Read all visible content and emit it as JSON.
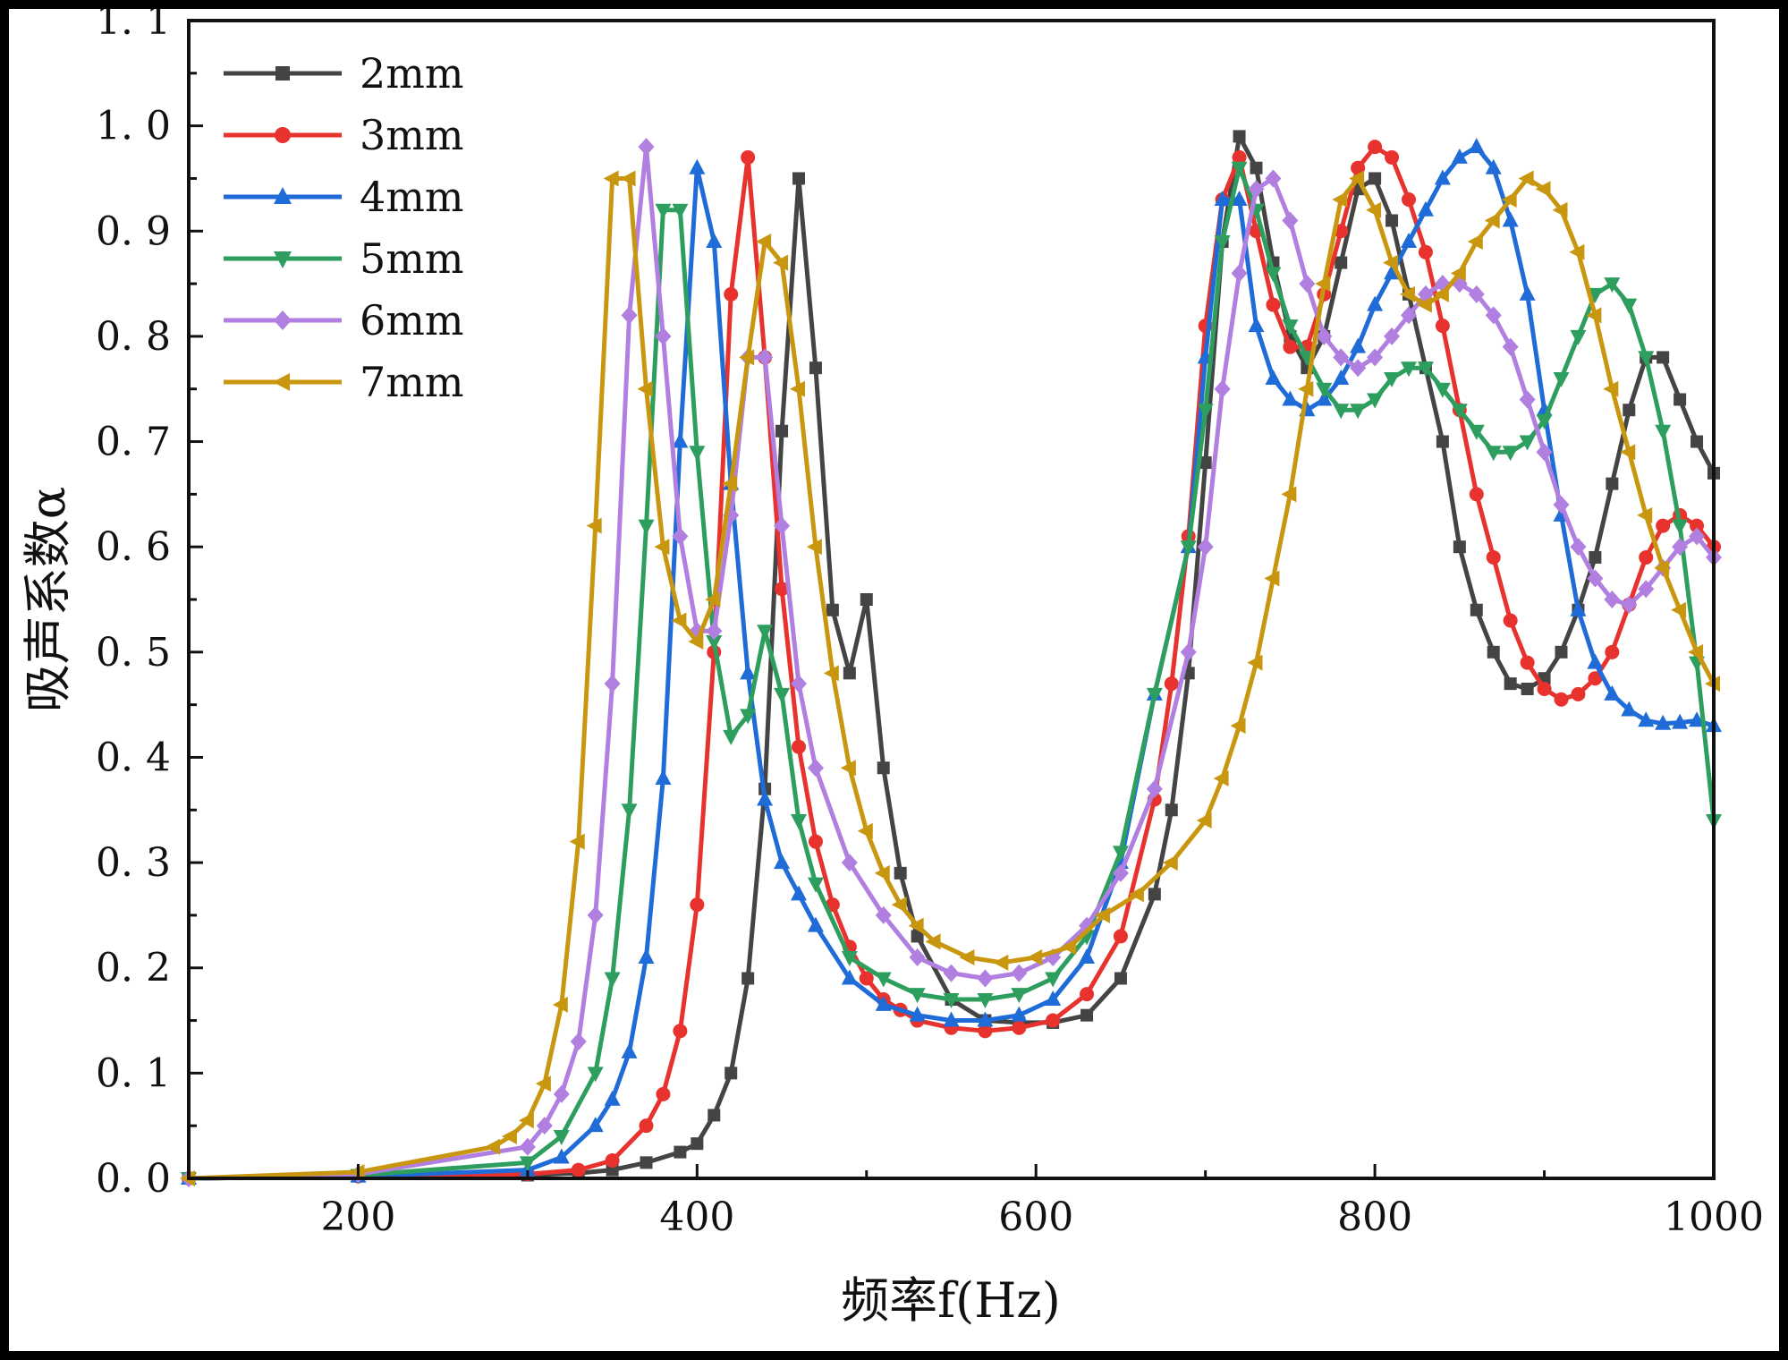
{
  "chart_data": {
    "type": "line",
    "title": "",
    "xlabel": "频率f(Hz)",
    "ylabel": "吸声系数α",
    "xlim": [
      100,
      1000
    ],
    "ylim": [
      0,
      1.1
    ],
    "xticks": [
      200,
      400,
      600,
      800,
      1000
    ],
    "xtick_labels": [
      "200",
      "400",
      "600",
      "800",
      "1000"
    ],
    "yticks": [
      0,
      0.1,
      0.2,
      0.3,
      0.4,
      0.5,
      0.6,
      0.7,
      0.8,
      0.9,
      1.0,
      1.1
    ],
    "ytick_labels": [
      "0. 0",
      "0. 1",
      "0. 2",
      "0. 3",
      "0. 4",
      "0. 5",
      "0. 6",
      "0. 7",
      "0. 8",
      "0. 9",
      "1. 0",
      "1. 1"
    ],
    "legend_position": "top-left",
    "grid": false,
    "series": [
      {
        "name": "2mm",
        "color": "#444444",
        "marker": "square",
        "x": [
          100,
          200,
          300,
          330,
          350,
          370,
          390,
          400,
          410,
          420,
          430,
          440,
          450,
          460,
          470,
          480,
          490,
          500,
          510,
          520,
          530,
          550,
          570,
          590,
          610,
          630,
          650,
          670,
          680,
          690,
          700,
          710,
          720,
          730,
          740,
          750,
          760,
          770,
          780,
          790,
          800,
          810,
          820,
          830,
          840,
          850,
          860,
          870,
          880,
          890,
          900,
          910,
          920,
          930,
          940,
          950,
          960,
          970,
          980,
          990,
          1000
        ],
        "y": [
          0,
          0.002,
          0.003,
          0.005,
          0.008,
          0.015,
          0.025,
          0.033,
          0.06,
          0.1,
          0.19,
          0.37,
          0.71,
          0.95,
          0.77,
          0.54,
          0.48,
          0.55,
          0.39,
          0.29,
          0.23,
          0.17,
          0.15,
          0.148,
          0.148,
          0.155,
          0.19,
          0.27,
          0.35,
          0.48,
          0.68,
          0.89,
          0.99,
          0.96,
          0.87,
          0.8,
          0.77,
          0.8,
          0.87,
          0.94,
          0.95,
          0.91,
          0.84,
          0.77,
          0.7,
          0.6,
          0.54,
          0.5,
          0.47,
          0.465,
          0.475,
          0.5,
          0.54,
          0.59,
          0.66,
          0.73,
          0.78,
          0.78,
          0.74,
          0.7,
          0.67
        ]
      },
      {
        "name": "3mm",
        "color": "#e8322e",
        "marker": "circle",
        "x": [
          100,
          200,
          300,
          330,
          350,
          370,
          380,
          390,
          400,
          410,
          420,
          430,
          440,
          450,
          460,
          470,
          480,
          490,
          500,
          510,
          520,
          530,
          550,
          570,
          590,
          610,
          630,
          650,
          670,
          680,
          690,
          700,
          710,
          720,
          730,
          740,
          750,
          760,
          770,
          780,
          790,
          800,
          810,
          820,
          830,
          840,
          850,
          860,
          870,
          880,
          890,
          900,
          910,
          920,
          930,
          940,
          950,
          960,
          970,
          980,
          990,
          1000
        ],
        "y": [
          0,
          0.002,
          0.004,
          0.008,
          0.017,
          0.05,
          0.08,
          0.14,
          0.26,
          0.5,
          0.84,
          0.97,
          0.78,
          0.56,
          0.41,
          0.32,
          0.26,
          0.22,
          0.19,
          0.17,
          0.16,
          0.15,
          0.143,
          0.14,
          0.143,
          0.15,
          0.175,
          0.23,
          0.36,
          0.47,
          0.61,
          0.81,
          0.93,
          0.97,
          0.9,
          0.83,
          0.79,
          0.79,
          0.84,
          0.9,
          0.96,
          0.98,
          0.97,
          0.93,
          0.88,
          0.81,
          0.73,
          0.65,
          0.59,
          0.53,
          0.49,
          0.465,
          0.455,
          0.46,
          0.475,
          0.5,
          0.545,
          0.59,
          0.62,
          0.63,
          0.62,
          0.6
        ]
      },
      {
        "name": "4mm",
        "color": "#1f6bd8",
        "marker": "triangle-up",
        "x": [
          100,
          200,
          300,
          320,
          340,
          350,
          360,
          370,
          380,
          390,
          400,
          410,
          420,
          430,
          440,
          450,
          460,
          470,
          490,
          510,
          530,
          550,
          570,
          590,
          610,
          630,
          650,
          670,
          690,
          700,
          710,
          720,
          730,
          740,
          750,
          760,
          770,
          780,
          790,
          800,
          810,
          820,
          830,
          840,
          850,
          860,
          870,
          880,
          890,
          900,
          910,
          920,
          930,
          940,
          950,
          960,
          970,
          980,
          990,
          1000
        ],
        "y": [
          0,
          0.002,
          0.008,
          0.02,
          0.05,
          0.075,
          0.12,
          0.21,
          0.38,
          0.7,
          0.96,
          0.89,
          0.66,
          0.48,
          0.36,
          0.3,
          0.27,
          0.24,
          0.19,
          0.165,
          0.155,
          0.15,
          0.15,
          0.155,
          0.17,
          0.21,
          0.3,
          0.46,
          0.6,
          0.78,
          0.93,
          0.93,
          0.81,
          0.76,
          0.74,
          0.73,
          0.74,
          0.76,
          0.79,
          0.83,
          0.86,
          0.89,
          0.92,
          0.95,
          0.97,
          0.98,
          0.96,
          0.91,
          0.84,
          0.73,
          0.63,
          0.54,
          0.49,
          0.46,
          0.445,
          0.435,
          0.432,
          0.433,
          0.435,
          0.43
        ]
      },
      {
        "name": "5mm",
        "color": "#2e9e5e",
        "marker": "triangle-down",
        "x": [
          100,
          200,
          300,
          320,
          340,
          350,
          360,
          370,
          380,
          390,
          400,
          410,
          420,
          430,
          440,
          450,
          460,
          470,
          490,
          510,
          530,
          550,
          570,
          590,
          610,
          630,
          650,
          670,
          690,
          700,
          710,
          720,
          730,
          740,
          750,
          760,
          770,
          780,
          790,
          800,
          810,
          820,
          830,
          840,
          850,
          860,
          870,
          880,
          890,
          900,
          910,
          920,
          930,
          940,
          950,
          960,
          970,
          980,
          990,
          1000
        ],
        "y": [
          0,
          0.003,
          0.015,
          0.04,
          0.1,
          0.19,
          0.35,
          0.62,
          0.92,
          0.92,
          0.69,
          0.51,
          0.42,
          0.44,
          0.52,
          0.46,
          0.34,
          0.28,
          0.21,
          0.19,
          0.175,
          0.17,
          0.17,
          0.175,
          0.19,
          0.23,
          0.31,
          0.46,
          0.6,
          0.73,
          0.89,
          0.96,
          0.92,
          0.86,
          0.81,
          0.78,
          0.75,
          0.73,
          0.73,
          0.74,
          0.76,
          0.77,
          0.77,
          0.75,
          0.73,
          0.71,
          0.69,
          0.69,
          0.7,
          0.72,
          0.76,
          0.8,
          0.84,
          0.85,
          0.83,
          0.78,
          0.71,
          0.62,
          0.49,
          0.34
        ]
      },
      {
        "name": "6mm",
        "color": "#b07fe0",
        "marker": "diamond",
        "x": [
          100,
          200,
          300,
          310,
          320,
          330,
          340,
          350,
          360,
          370,
          380,
          390,
          400,
          410,
          420,
          430,
          440,
          450,
          460,
          470,
          490,
          510,
          530,
          550,
          570,
          590,
          610,
          630,
          650,
          670,
          690,
          700,
          710,
          720,
          730,
          740,
          750,
          760,
          770,
          780,
          790,
          800,
          810,
          820,
          830,
          840,
          850,
          860,
          870,
          880,
          890,
          900,
          910,
          920,
          930,
          940,
          950,
          960,
          970,
          980,
          990,
          1000
        ],
        "y": [
          0,
          0.004,
          0.03,
          0.05,
          0.08,
          0.13,
          0.25,
          0.47,
          0.82,
          0.98,
          0.8,
          0.61,
          0.52,
          0.52,
          0.63,
          0.78,
          0.78,
          0.62,
          0.47,
          0.39,
          0.3,
          0.25,
          0.21,
          0.195,
          0.19,
          0.195,
          0.21,
          0.24,
          0.29,
          0.37,
          0.5,
          0.6,
          0.75,
          0.86,
          0.94,
          0.95,
          0.91,
          0.85,
          0.8,
          0.78,
          0.77,
          0.78,
          0.8,
          0.82,
          0.84,
          0.85,
          0.85,
          0.84,
          0.82,
          0.79,
          0.74,
          0.69,
          0.64,
          0.6,
          0.57,
          0.55,
          0.545,
          0.56,
          0.58,
          0.6,
          0.61,
          0.59
        ]
      },
      {
        "name": "7mm",
        "color": "#c9970f",
        "marker": "triangle-left",
        "x": [
          100,
          200,
          280,
          290,
          300,
          310,
          320,
          330,
          340,
          350,
          360,
          370,
          380,
          390,
          400,
          410,
          420,
          430,
          440,
          450,
          460,
          470,
          480,
          490,
          500,
          510,
          520,
          530,
          540,
          560,
          580,
          600,
          620,
          640,
          660,
          680,
          700,
          710,
          720,
          730,
          740,
          750,
          760,
          770,
          780,
          790,
          800,
          810,
          820,
          830,
          840,
          850,
          860,
          870,
          880,
          890,
          900,
          910,
          920,
          930,
          940,
          950,
          960,
          970,
          980,
          990,
          1000
        ],
        "y": [
          0,
          0.006,
          0.03,
          0.04,
          0.055,
          0.09,
          0.165,
          0.32,
          0.62,
          0.95,
          0.95,
          0.75,
          0.6,
          0.53,
          0.51,
          0.55,
          0.66,
          0.78,
          0.89,
          0.87,
          0.75,
          0.6,
          0.48,
          0.39,
          0.33,
          0.29,
          0.26,
          0.24,
          0.225,
          0.21,
          0.205,
          0.21,
          0.22,
          0.25,
          0.27,
          0.3,
          0.34,
          0.38,
          0.43,
          0.49,
          0.57,
          0.65,
          0.75,
          0.85,
          0.93,
          0.95,
          0.92,
          0.87,
          0.84,
          0.83,
          0.84,
          0.86,
          0.89,
          0.91,
          0.93,
          0.95,
          0.94,
          0.92,
          0.88,
          0.82,
          0.75,
          0.69,
          0.63,
          0.58,
          0.54,
          0.5,
          0.47
        ]
      }
    ]
  }
}
